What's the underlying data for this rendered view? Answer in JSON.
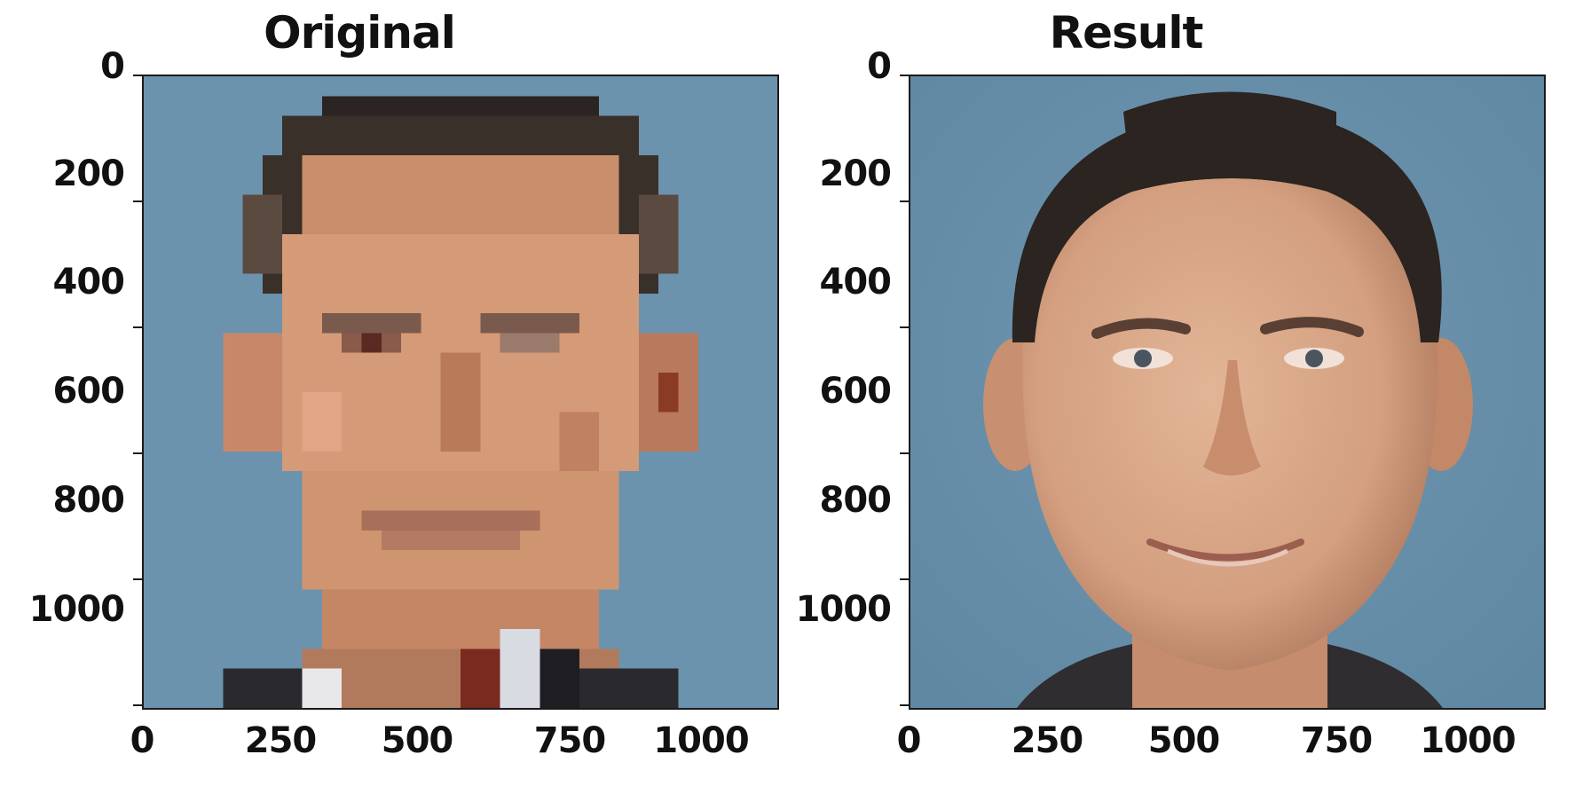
{
  "panels": [
    {
      "title": "Original",
      "yticks": [
        "0",
        "200",
        "400",
        "600",
        "800",
        "1000"
      ],
      "xticks": [
        "0",
        "250",
        "500",
        "750",
        "1000"
      ],
      "image": "pixelated low-resolution portrait of a man in suit and tie, blue background"
    },
    {
      "title": "Result",
      "yticks": [
        "0",
        "200",
        "400",
        "600",
        "800",
        "1000"
      ],
      "xticks": [
        "0",
        "250",
        "500",
        "750",
        "1000"
      ],
      "image": "upscaled realistic portrait of a smiling man with short dark hair, blue background"
    }
  ],
  "colors": {
    "background_blue": "#6a93ad",
    "skin": "#d9a27f",
    "hair": "#2a2220"
  }
}
